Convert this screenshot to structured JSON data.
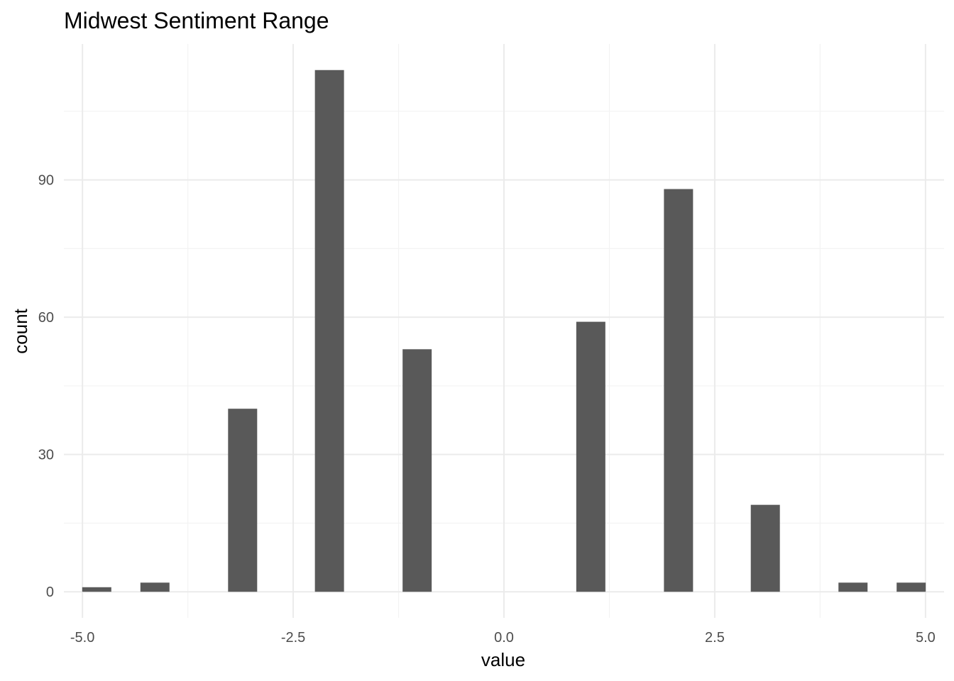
{
  "chart_data": {
    "type": "bar",
    "title": "Midwest Sentiment Range",
    "xlabel": "value",
    "ylabel": "count",
    "xlim": [
      -5.22,
      5.22
    ],
    "ylim": [
      -5.7,
      119.7
    ],
    "x_ticks": [
      -5.0,
      -2.5,
      0.0,
      2.5,
      5.0
    ],
    "x_tick_labels": [
      "-5.0",
      "-2.5",
      "0.0",
      "2.5",
      "5.0"
    ],
    "y_ticks": [
      0,
      30,
      60,
      90
    ],
    "y_tick_labels": [
      "0",
      "30",
      "60",
      "90"
    ],
    "bin_width": 0.345,
    "x": [
      -4.83,
      -4.14,
      -3.1,
      -2.07,
      -1.03,
      1.03,
      2.07,
      3.1,
      4.14,
      4.83
    ],
    "values": [
      1,
      2,
      40,
      114,
      53,
      59,
      88,
      19,
      2,
      2
    ],
    "grid": true,
    "bar_color": "#595959",
    "background": "#ffffff"
  }
}
